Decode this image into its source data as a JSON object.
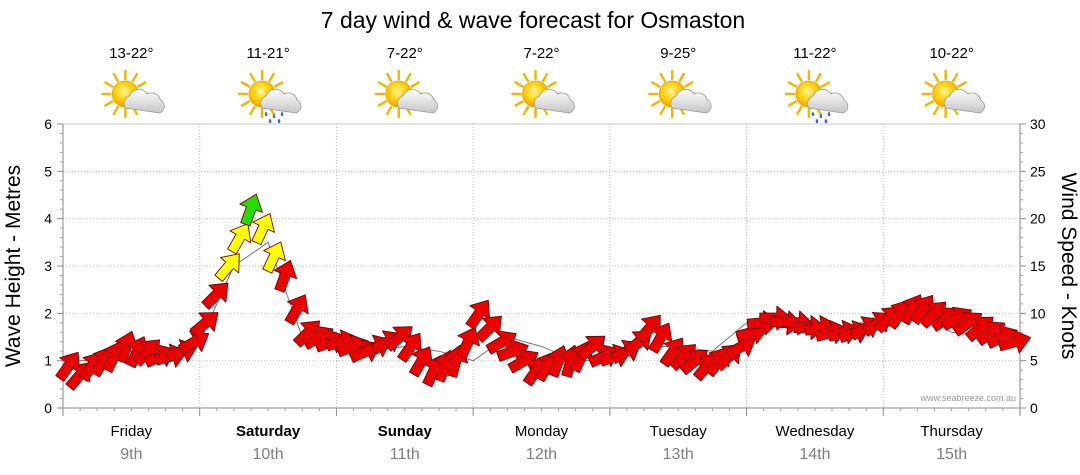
{
  "chart_data": {
    "type": "line",
    "title": "7 day wind & wave forecast for Osmaston",
    "ylabel_left": "Wave Height - Metres",
    "ylabel_right": "Wind Speed - Knots",
    "ylim_left": [
      0,
      6
    ],
    "ylim_right": [
      0,
      30
    ],
    "yticks_left": [
      "0",
      "1",
      "2",
      "3",
      "4",
      "5",
      "6"
    ],
    "yticks_right": [
      "0",
      "5",
      "10",
      "15",
      "20",
      "25",
      "30"
    ],
    "grid": true,
    "credit": "www.seabreeze.com.au",
    "days": [
      {
        "name": "Friday",
        "date": "9th",
        "bold": false,
        "temp": "13-22°",
        "weather": "partly-cloudy"
      },
      {
        "name": "Saturday",
        "date": "10th",
        "bold": true,
        "temp": "11-21°",
        "weather": "showers"
      },
      {
        "name": "Sunday",
        "date": "11th",
        "bold": true,
        "temp": "7-22°",
        "weather": "partly-cloudy"
      },
      {
        "name": "Monday",
        "date": "12th",
        "bold": false,
        "temp": "7-22°",
        "weather": "partly-cloudy"
      },
      {
        "name": "Tuesday",
        "date": "13th",
        "bold": false,
        "temp": "9-25°",
        "weather": "partly-cloudy"
      },
      {
        "name": "Wednesday",
        "date": "14th",
        "bold": false,
        "temp": "11-22°",
        "weather": "showers"
      },
      {
        "name": "Thursday",
        "date": "15th",
        "bold": false,
        "temp": "10-22°",
        "weather": "partly-cloudy"
      }
    ],
    "wind_colors": {
      "red": "#ee0000",
      "yellow": "#ffff00",
      "green": "#22dd00"
    },
    "series": [
      {
        "name": "Wind",
        "unit": "knots",
        "x_days": [
          0.0,
          0.08,
          0.17,
          0.25,
          0.33,
          0.42,
          0.5,
          0.58,
          0.67,
          0.75,
          0.83,
          0.92,
          1.0,
          1.08,
          1.17,
          1.25,
          1.33,
          1.42,
          1.5,
          1.58,
          1.67,
          1.75,
          1.83,
          1.92,
          2.0,
          2.08,
          2.17,
          2.25,
          2.33,
          2.42,
          2.5,
          2.58,
          2.67,
          2.75,
          2.83,
          2.92,
          3.0,
          3.08,
          3.17,
          3.25,
          3.33,
          3.42,
          3.5,
          3.58,
          3.67,
          3.75,
          3.83,
          3.92,
          4.0,
          4.08,
          4.17,
          4.25,
          4.33,
          4.42,
          4.5,
          4.58,
          4.67,
          4.75,
          4.83,
          4.92,
          5.0,
          5.08,
          5.17,
          5.25,
          5.33,
          5.42,
          5.5,
          5.58,
          5.67,
          5.75,
          5.83,
          5.92,
          6.0,
          6.08,
          6.17,
          6.25,
          6.33,
          6.42,
          6.5,
          6.58,
          6.67,
          6.75,
          6.83,
          6.92
        ],
        "speed": [
          4.5,
          3.5,
          4.5,
          5.0,
          5.5,
          6.5,
          6.0,
          6.0,
          5.5,
          5.5,
          6.0,
          7.0,
          9.0,
          12.0,
          15.0,
          18.0,
          21.0,
          19.0,
          16.0,
          14.0,
          10.5,
          8.0,
          7.5,
          7.0,
          7.0,
          6.5,
          6.0,
          6.5,
          7.0,
          7.5,
          6.5,
          5.0,
          4.0,
          4.5,
          5.0,
          7.0,
          10.0,
          8.5,
          7.0,
          6.0,
          5.0,
          4.0,
          4.5,
          5.0,
          5.0,
          5.5,
          6.5,
          5.5,
          5.5,
          6.0,
          7.0,
          8.5,
          7.5,
          6.0,
          5.5,
          5.0,
          4.5,
          5.0,
          5.5,
          6.5,
          8.0,
          9.0,
          9.5,
          9.0,
          9.0,
          8.5,
          8.5,
          8.0,
          8.0,
          8.0,
          8.5,
          9.0,
          9.5,
          10.0,
          10.5,
          10.5,
          10.0,
          9.5,
          9.5,
          9.0,
          8.5,
          8.0,
          7.5,
          7.0
        ],
        "direction_deg": [
          215,
          220,
          215,
          210,
          205,
          200,
          205,
          225,
          245,
          255,
          250,
          240,
          230,
          225,
          220,
          210,
          200,
          205,
          205,
          200,
          210,
          225,
          240,
          250,
          255,
          250,
          245,
          245,
          240,
          230,
          215,
          210,
          205,
          200,
          195,
          205,
          215,
          225,
          240,
          250,
          240,
          215,
          210,
          200,
          195,
          205,
          230,
          245,
          250,
          240,
          230,
          220,
          210,
          215,
          225,
          230,
          220,
          215,
          225,
          240,
          255,
          265,
          270,
          275,
          275,
          270,
          260,
          255,
          255,
          250,
          240,
          235,
          225,
          215,
          210,
          215,
          225,
          235,
          240,
          235,
          230,
          235,
          245,
          255
        ]
      },
      {
        "name": "Wave",
        "unit": "metres",
        "x_days": [
          0.0,
          0.25,
          0.5,
          0.75,
          1.0,
          1.25,
          1.5,
          1.75,
          2.0,
          2.25,
          2.5,
          2.75,
          3.0,
          3.25,
          3.5,
          3.75,
          4.0,
          4.25,
          4.5,
          4.75,
          5.0,
          5.25,
          5.5,
          5.75,
          6.0,
          6.25,
          6.5,
          6.75,
          7.0
        ],
        "height": [
          1.0,
          1.0,
          1.2,
          1.2,
          1.4,
          3.0,
          3.5,
          1.5,
          1.3,
          1.2,
          1.3,
          1.2,
          1.0,
          1.5,
          1.3,
          1.0,
          1.0,
          1.3,
          1.3,
          1.2,
          1.8,
          1.8,
          1.7,
          1.7,
          2.0,
          2.0,
          1.6,
          1.5,
          1.5
        ]
      }
    ]
  }
}
